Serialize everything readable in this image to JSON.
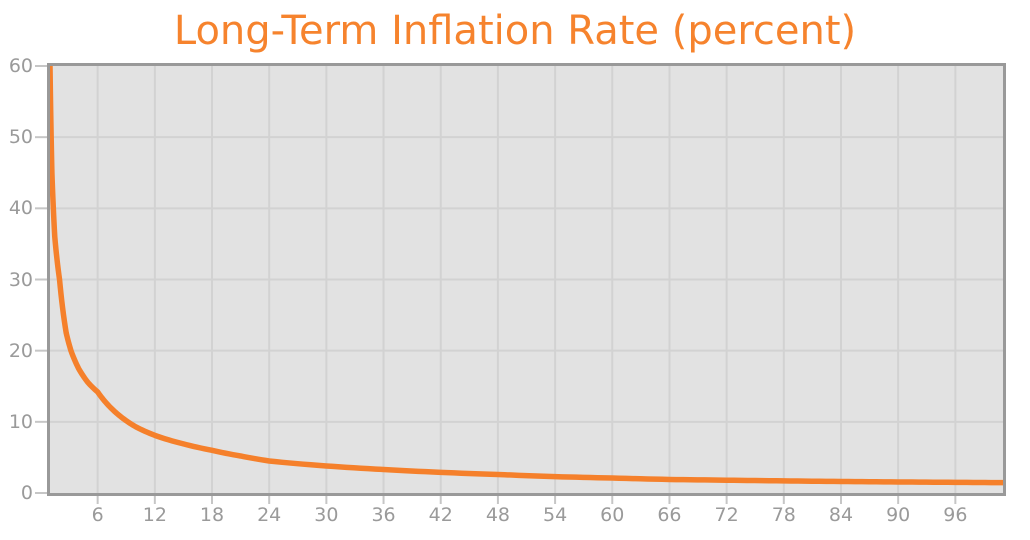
{
  "chart_data": {
    "type": "line",
    "title": "Long-Term Inflation Rate (percent)",
    "xlabel": "",
    "ylabel": "",
    "xlim": [
      1,
      101
    ],
    "ylim": [
      0,
      60
    ],
    "x_ticks": [
      6,
      12,
      18,
      24,
      30,
      36,
      42,
      48,
      54,
      60,
      66,
      72,
      78,
      84,
      90,
      96
    ],
    "x_tick_labels": [
      "6",
      "12",
      "18",
      "24",
      "30",
      "36",
      "42",
      "48",
      "54",
      "60",
      "66",
      "72",
      "78",
      "84",
      "90",
      "96"
    ],
    "y_ticks": [
      0,
      10,
      20,
      30,
      40,
      50,
      60
    ],
    "y_tick_labels": [
      "0",
      "10",
      "20",
      "30",
      "40",
      "50",
      "60"
    ],
    "y_gridlines": [
      10,
      20,
      30,
      40,
      50
    ],
    "grid": true,
    "legend_position": "none",
    "series": [
      {
        "name": "Long-Term Inflation Rate (percent)",
        "x": [
          1,
          1.2,
          1.5,
          2,
          2.7,
          3.2,
          4,
          5,
          6,
          8,
          10,
          12,
          15,
          18,
          21,
          24,
          30,
          36,
          42,
          48,
          54,
          60,
          66,
          72,
          78,
          84,
          90,
          96,
          101
        ],
        "y": [
          60,
          45,
          36,
          30,
          22.5,
          20,
          17.5,
          15.5,
          14.2,
          11.2,
          9.3,
          8.1,
          6.9,
          6.0,
          5.2,
          4.5,
          3.8,
          3.3,
          2.9,
          2.6,
          2.3,
          2.1,
          1.9,
          1.8,
          1.7,
          1.62,
          1.55,
          1.5,
          1.45
        ]
      }
    ]
  },
  "colors": {
    "title": "#f6832d",
    "curve": "#f5802b",
    "plot_background": "#e2e2e2",
    "gridline": "#d2d2d2",
    "plot_border": "#999999",
    "tick": "#c6c6c6",
    "tick_label": "#9a9a9a",
    "page_background": "#ffffff"
  }
}
